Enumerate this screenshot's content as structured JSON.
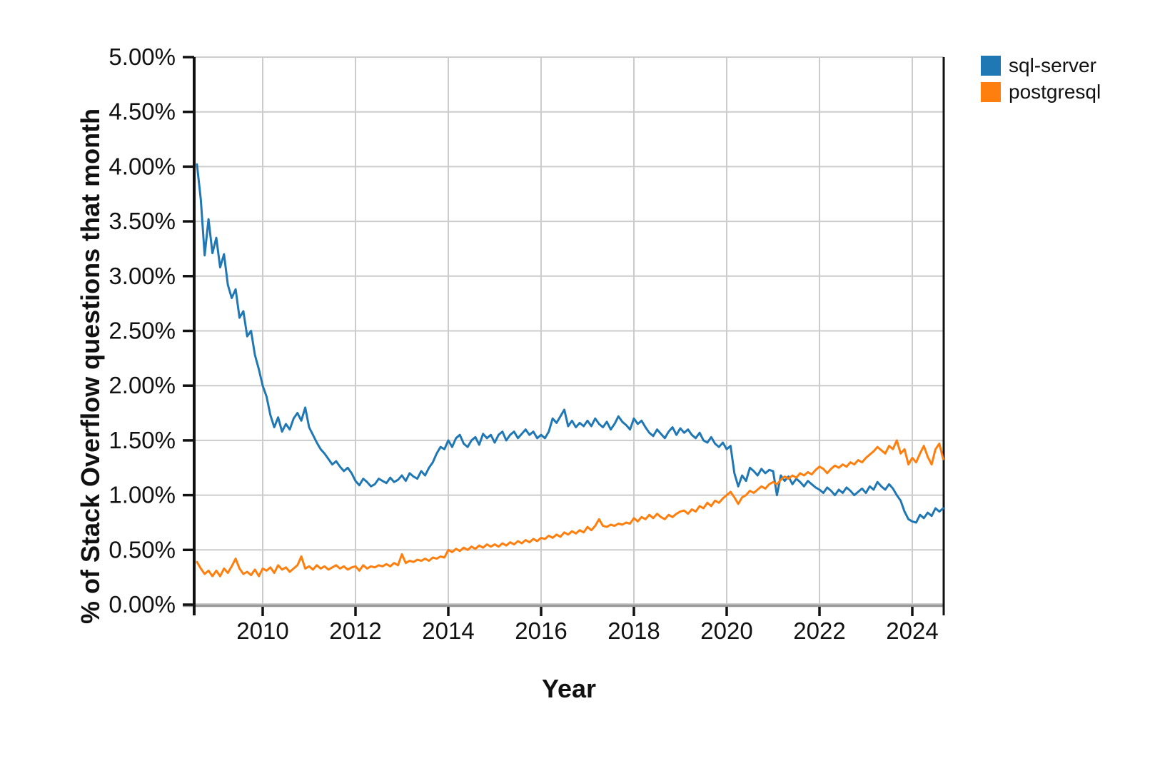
{
  "chart_data": {
    "type": "line",
    "title": "",
    "xlabel": "Year",
    "ylabel": "% of Stack Overflow questions that month",
    "grid": true,
    "legend_position": "top-right",
    "x_start_month": "2008-08",
    "x_end_month": "2024-09",
    "x_start_year_decimal": 2008.583,
    "x_step_years": 0.08333,
    "xlim": [
      2008.52,
      2024.68
    ],
    "ylim": [
      0,
      5
    ],
    "x_ticks": [
      2010,
      2012,
      2014,
      2016,
      2018,
      2020,
      2022,
      2024
    ],
    "x_tick_labels": [
      "2010",
      "2012",
      "2014",
      "2016",
      "2018",
      "2020",
      "2022",
      "2024"
    ],
    "y_ticks": [
      0,
      0.5,
      1,
      1.5,
      2,
      2.5,
      3,
      3.5,
      4,
      4.5,
      5
    ],
    "y_tick_labels": [
      "0.00%",
      "0.50%",
      "1.00%",
      "1.50%",
      "2.00%",
      "2.50%",
      "3.00%",
      "3.50%",
      "4.00%",
      "4.50%",
      "5.00%"
    ],
    "colors": {
      "grid": "#cccccc",
      "axis": "#111111",
      "bottom_axis": "#999999"
    },
    "series": [
      {
        "name": "sql-server",
        "color": "#1f77b4",
        "values": [
          4.02,
          3.7,
          3.19,
          3.52,
          3.21,
          3.35,
          3.08,
          3.2,
          2.92,
          2.8,
          2.88,
          2.62,
          2.68,
          2.45,
          2.5,
          2.28,
          2.15,
          2.0,
          1.9,
          1.73,
          1.62,
          1.71,
          1.58,
          1.65,
          1.6,
          1.7,
          1.75,
          1.68,
          1.8,
          1.62,
          1.55,
          1.48,
          1.42,
          1.38,
          1.33,
          1.28,
          1.31,
          1.26,
          1.22,
          1.25,
          1.2,
          1.13,
          1.09,
          1.15,
          1.12,
          1.08,
          1.1,
          1.15,
          1.13,
          1.11,
          1.16,
          1.12,
          1.14,
          1.18,
          1.13,
          1.2,
          1.17,
          1.15,
          1.22,
          1.18,
          1.25,
          1.3,
          1.38,
          1.44,
          1.42,
          1.5,
          1.44,
          1.52,
          1.55,
          1.47,
          1.44,
          1.5,
          1.53,
          1.46,
          1.56,
          1.52,
          1.55,
          1.48,
          1.55,
          1.58,
          1.5,
          1.55,
          1.58,
          1.52,
          1.56,
          1.6,
          1.55,
          1.58,
          1.52,
          1.55,
          1.52,
          1.58,
          1.7,
          1.66,
          1.72,
          1.78,
          1.63,
          1.68,
          1.62,
          1.66,
          1.63,
          1.68,
          1.63,
          1.7,
          1.65,
          1.62,
          1.67,
          1.6,
          1.65,
          1.72,
          1.67,
          1.64,
          1.6,
          1.7,
          1.65,
          1.68,
          1.62,
          1.57,
          1.54,
          1.6,
          1.56,
          1.52,
          1.58,
          1.62,
          1.55,
          1.61,
          1.57,
          1.6,
          1.55,
          1.52,
          1.57,
          1.5,
          1.48,
          1.53,
          1.47,
          1.44,
          1.48,
          1.42,
          1.45,
          1.2,
          1.08,
          1.18,
          1.13,
          1.25,
          1.22,
          1.18,
          1.24,
          1.2,
          1.23,
          1.22,
          1.0,
          1.18,
          1.13,
          1.17,
          1.1,
          1.15,
          1.12,
          1.08,
          1.13,
          1.1,
          1.07,
          1.05,
          1.02,
          1.07,
          1.04,
          1.0,
          1.05,
          1.02,
          1.07,
          1.04,
          1.0,
          1.03,
          1.06,
          1.02,
          1.08,
          1.05,
          1.12,
          1.08,
          1.05,
          1.1,
          1.06,
          1.0,
          0.95,
          0.85,
          0.78,
          0.76,
          0.75,
          0.82,
          0.79,
          0.84,
          0.81,
          0.88,
          0.85,
          0.88
        ]
      },
      {
        "name": "postgresql",
        "color": "#ff7f0e",
        "values": [
          0.39,
          0.33,
          0.28,
          0.31,
          0.26,
          0.31,
          0.26,
          0.33,
          0.29,
          0.35,
          0.42,
          0.33,
          0.28,
          0.3,
          0.27,
          0.32,
          0.26,
          0.33,
          0.31,
          0.34,
          0.29,
          0.36,
          0.32,
          0.34,
          0.3,
          0.33,
          0.36,
          0.44,
          0.33,
          0.35,
          0.32,
          0.36,
          0.33,
          0.35,
          0.32,
          0.34,
          0.36,
          0.33,
          0.35,
          0.32,
          0.34,
          0.35,
          0.31,
          0.36,
          0.33,
          0.35,
          0.34,
          0.36,
          0.35,
          0.37,
          0.35,
          0.38,
          0.36,
          0.46,
          0.38,
          0.4,
          0.39,
          0.41,
          0.4,
          0.42,
          0.4,
          0.43,
          0.42,
          0.44,
          0.43,
          0.5,
          0.48,
          0.51,
          0.49,
          0.52,
          0.5,
          0.53,
          0.51,
          0.54,
          0.52,
          0.55,
          0.53,
          0.55,
          0.53,
          0.56,
          0.54,
          0.57,
          0.55,
          0.58,
          0.56,
          0.59,
          0.57,
          0.6,
          0.58,
          0.61,
          0.6,
          0.63,
          0.61,
          0.64,
          0.62,
          0.66,
          0.64,
          0.67,
          0.65,
          0.68,
          0.66,
          0.71,
          0.68,
          0.72,
          0.78,
          0.72,
          0.71,
          0.73,
          0.72,
          0.74,
          0.73,
          0.75,
          0.74,
          0.79,
          0.76,
          0.8,
          0.78,
          0.82,
          0.79,
          0.83,
          0.8,
          0.78,
          0.82,
          0.8,
          0.83,
          0.85,
          0.86,
          0.83,
          0.87,
          0.85,
          0.9,
          0.88,
          0.93,
          0.9,
          0.95,
          0.93,
          0.97,
          1.0,
          1.03,
          0.98,
          0.92,
          0.98,
          1.0,
          1.04,
          1.02,
          1.05,
          1.08,
          1.06,
          1.1,
          1.12,
          1.1,
          1.14,
          1.17,
          1.15,
          1.18,
          1.16,
          1.2,
          1.18,
          1.21,
          1.19,
          1.23,
          1.26,
          1.24,
          1.2,
          1.24,
          1.27,
          1.25,
          1.28,
          1.26,
          1.3,
          1.28,
          1.32,
          1.3,
          1.34,
          1.37,
          1.4,
          1.44,
          1.41,
          1.38,
          1.45,
          1.42,
          1.5,
          1.38,
          1.42,
          1.28,
          1.34,
          1.3,
          1.38,
          1.45,
          1.35,
          1.28,
          1.42,
          1.47,
          1.33
        ]
      }
    ]
  },
  "axes": {
    "x_title": "Year",
    "y_title": "% of Stack Overflow questions that month"
  }
}
